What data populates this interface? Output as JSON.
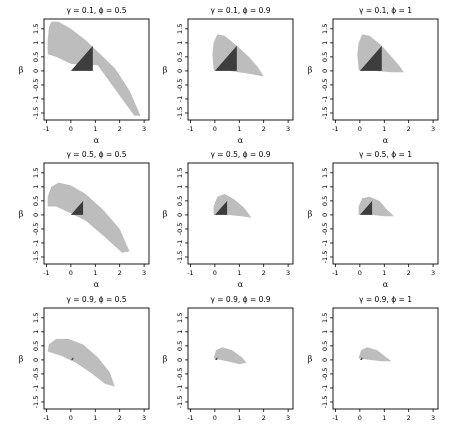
{
  "chart_data": {
    "type": "area",
    "colors": {
      "region": "#bdbdbd",
      "triangle": "#3d3d3d",
      "axes": "#000000"
    },
    "xlabel": "α",
    "ylabel": "β",
    "xticks": [
      "-1",
      "0",
      "1",
      "2",
      "3"
    ],
    "yticks": [
      "-1.5",
      "-1",
      "-0.5",
      "0",
      "0.5",
      "1",
      "1.5"
    ],
    "xlim": [
      -1.1,
      3.2
    ],
    "ylim": [
      -1.75,
      1.85
    ],
    "panels": [
      {
        "title": "γ = 0.1,  ϕ = 0.5",
        "region": [
          [
            -0.95,
            0.6
          ],
          [
            -0.95,
            1.1
          ],
          [
            -0.9,
            1.55
          ],
          [
            -0.8,
            1.75
          ],
          [
            -0.5,
            1.75
          ],
          [
            0,
            1.5
          ],
          [
            0.6,
            1.1
          ],
          [
            1.2,
            0.6
          ],
          [
            1.8,
            0.1
          ],
          [
            2.4,
            -0.7
          ],
          [
            2.85,
            -1.6
          ],
          [
            2.6,
            -1.6
          ],
          [
            1.1,
            0.2
          ],
          [
            0,
            0.25
          ],
          [
            -0.6,
            0.5
          ]
        ],
        "triangle": [
          [
            0,
            0
          ],
          [
            0.9,
            0
          ],
          [
            0.9,
            0.9
          ]
        ]
      },
      {
        "title": "γ = 0.1,  ϕ = 0.9",
        "region": [
          [
            -0.05,
            0.05
          ],
          [
            -0.1,
            0.6
          ],
          [
            -0.05,
            1.0
          ],
          [
            0.1,
            1.3
          ],
          [
            0.4,
            1.25
          ],
          [
            0.9,
            0.9
          ],
          [
            1.4,
            0.5
          ],
          [
            1.75,
            0.15
          ],
          [
            2.0,
            -0.2
          ],
          [
            1.4,
            -0.1
          ],
          [
            0.6,
            0.0
          ],
          [
            0,
            0
          ]
        ],
        "triangle": [
          [
            0,
            0
          ],
          [
            0.9,
            0
          ],
          [
            0.9,
            0.9
          ]
        ]
      },
      {
        "title": "γ = 0.1,  ϕ = 1",
        "region": [
          [
            -0.05,
            0.05
          ],
          [
            -0.1,
            0.6
          ],
          [
            -0.05,
            1.0
          ],
          [
            0.1,
            1.3
          ],
          [
            0.4,
            1.25
          ],
          [
            0.9,
            0.9
          ],
          [
            1.3,
            0.5
          ],
          [
            1.6,
            0.2
          ],
          [
            1.8,
            -0.05
          ],
          [
            1.3,
            -0.05
          ],
          [
            0.6,
            0.0
          ],
          [
            0,
            0
          ]
        ],
        "triangle": [
          [
            0,
            0
          ],
          [
            0.9,
            0
          ],
          [
            0.9,
            0.9
          ]
        ]
      },
      {
        "title": "γ = 0.5,  ϕ = 0.5",
        "region": [
          [
            -0.95,
            0.3
          ],
          [
            -0.95,
            0.65
          ],
          [
            -0.8,
            1.0
          ],
          [
            -0.5,
            1.15
          ],
          [
            0,
            1.05
          ],
          [
            0.6,
            0.75
          ],
          [
            1.3,
            0.2
          ],
          [
            2.0,
            -0.5
          ],
          [
            2.4,
            -1.3
          ],
          [
            2.1,
            -1.35
          ],
          [
            1.4,
            -0.8
          ],
          [
            0.6,
            -0.2
          ],
          [
            0,
            0.05
          ],
          [
            -0.6,
            0.3
          ]
        ],
        "triangle": [
          [
            0,
            0
          ],
          [
            0.5,
            0
          ],
          [
            0.5,
            0.5
          ]
        ]
      },
      {
        "title": "γ = 0.5,  ϕ = 0.9",
        "region": [
          [
            -0.05,
            0.0
          ],
          [
            -0.05,
            0.3
          ],
          [
            0.1,
            0.65
          ],
          [
            0.4,
            0.75
          ],
          [
            0.8,
            0.55
          ],
          [
            1.2,
            0.25
          ],
          [
            1.5,
            -0.1
          ],
          [
            1.1,
            -0.05
          ],
          [
            0.5,
            0.0
          ]
        ],
        "triangle": [
          [
            0,
            0
          ],
          [
            0.5,
            0
          ],
          [
            0.5,
            0.5
          ]
        ]
      },
      {
        "title": "γ = 0.5,  ϕ = 1",
        "region": [
          [
            -0.05,
            0.0
          ],
          [
            -0.05,
            0.3
          ],
          [
            0.1,
            0.6
          ],
          [
            0.4,
            0.65
          ],
          [
            0.8,
            0.5
          ],
          [
            1.1,
            0.2
          ],
          [
            1.4,
            -0.05
          ],
          [
            1.0,
            -0.05
          ],
          [
            0.5,
            0.0
          ]
        ],
        "triangle": [
          [
            0,
            0
          ],
          [
            0.5,
            0
          ],
          [
            0.5,
            0.5
          ]
        ]
      },
      {
        "title": "γ = 0.9,  ϕ = 0.5",
        "region": [
          [
            -0.95,
            0.3
          ],
          [
            -0.9,
            0.55
          ],
          [
            -0.6,
            0.75
          ],
          [
            -0.1,
            0.75
          ],
          [
            0.5,
            0.55
          ],
          [
            1.1,
            0.1
          ],
          [
            1.6,
            -0.45
          ],
          [
            1.8,
            -0.95
          ],
          [
            1.4,
            -0.85
          ],
          [
            0.8,
            -0.45
          ],
          [
            0.2,
            -0.1
          ],
          [
            -0.4,
            0.15
          ]
        ],
        "triangle": [
          [
            0,
            0
          ],
          [
            0.1,
            0
          ],
          [
            0.1,
            0.1
          ]
        ]
      },
      {
        "title": "γ = 0.9,  ϕ = 0.9",
        "region": [
          [
            -0.05,
            0.05
          ],
          [
            0.05,
            0.35
          ],
          [
            0.3,
            0.45
          ],
          [
            0.7,
            0.35
          ],
          [
            1.1,
            0.1
          ],
          [
            1.3,
            -0.1
          ],
          [
            1.0,
            -0.15
          ],
          [
            0.5,
            -0.05
          ]
        ],
        "triangle": [
          [
            0,
            0
          ],
          [
            0.1,
            0
          ],
          [
            0.1,
            0.1
          ]
        ]
      },
      {
        "title": "γ = 0.9,  ϕ = 1",
        "region": [
          [
            -0.05,
            0.05
          ],
          [
            0.05,
            0.35
          ],
          [
            0.3,
            0.45
          ],
          [
            0.7,
            0.35
          ],
          [
            1.0,
            0.15
          ],
          [
            1.3,
            -0.05
          ],
          [
            0.9,
            -0.05
          ],
          [
            0.4,
            0.0
          ]
        ],
        "triangle": [
          [
            0,
            0
          ],
          [
            0.1,
            0
          ],
          [
            0.1,
            0.1
          ]
        ]
      }
    ]
  }
}
